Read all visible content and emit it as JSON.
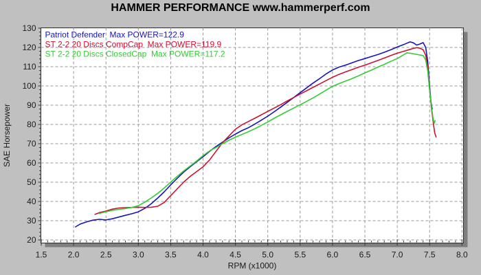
{
  "title": "HAMMER PERFORMANCE www.hammerperf.com",
  "colors": {
    "background": "#c0c0c0",
    "plot_background": "#ffffff",
    "plot_border": "#2a2a2a",
    "plot_shadow": "#7f7f7f",
    "grid": "#979797",
    "tick": "#333333",
    "title_text": "#000000",
    "axis_text": "#1a1a1a"
  },
  "chart_data": {
    "type": "line",
    "title": "HAMMER PERFORMANCE www.hammerperf.com",
    "xlabel": "RPM (x1000)",
    "ylabel": "SAE Horsepower",
    "xlim": [
      1.5,
      8.02
    ],
    "ylim": [
      18.4,
      130.4
    ],
    "grid": true,
    "legend_position": "top-left-inside",
    "x_ticks": [
      1.5,
      2.0,
      2.5,
      3.0,
      3.5,
      4.0,
      4.5,
      5.0,
      5.5,
      6.0,
      6.5,
      7.0,
      7.5,
      8.0
    ],
    "x_tick_labels": [
      "1.5",
      "2.0",
      "2.5",
      "3.0",
      "3.5",
      "4.0",
      "4.5",
      "5.0",
      "5.5",
      "6.0",
      "6.5",
      "7.0",
      "7.5",
      "8.0"
    ],
    "x_minor_step": 0.1,
    "y_ticks": [
      20,
      30,
      40,
      50,
      60,
      70,
      80,
      90,
      100,
      110,
      120,
      130
    ],
    "y_tick_labels": [
      "20",
      "30",
      "40",
      "50",
      "60",
      "70",
      "80",
      "90",
      "100",
      "110",
      "120",
      "130"
    ],
    "y_minor_step": 2,
    "series": [
      {
        "name": "Patriot Defender",
        "label": "Patriot Defender  Max POWER=122.9",
        "max_power": 122.9,
        "color": "#1414bb",
        "points": [
          [
            2.03,
            26.8
          ],
          [
            2.1,
            28.2
          ],
          [
            2.2,
            29.4
          ],
          [
            2.3,
            30.3
          ],
          [
            2.4,
            30.7
          ],
          [
            2.5,
            30.4
          ],
          [
            2.6,
            31.0
          ],
          [
            2.7,
            31.9
          ],
          [
            2.8,
            32.8
          ],
          [
            2.9,
            33.6
          ],
          [
            3.0,
            34.6
          ],
          [
            3.1,
            36.4
          ],
          [
            3.2,
            38.8
          ],
          [
            3.3,
            41.8
          ],
          [
            3.4,
            45.0
          ],
          [
            3.5,
            48.6
          ],
          [
            3.6,
            52.0
          ],
          [
            3.7,
            55.2
          ],
          [
            3.8,
            58.0
          ],
          [
            3.9,
            60.6
          ],
          [
            4.0,
            63.2
          ],
          [
            4.1,
            66.0
          ],
          [
            4.2,
            68.5
          ],
          [
            4.3,
            70.8
          ],
          [
            4.4,
            73.0
          ],
          [
            4.5,
            75.0
          ],
          [
            4.6,
            76.8
          ],
          [
            4.7,
            78.3
          ],
          [
            4.8,
            80.2
          ],
          [
            4.9,
            82.2
          ],
          [
            5.0,
            84.3
          ],
          [
            5.1,
            86.6
          ],
          [
            5.2,
            89.0
          ],
          [
            5.3,
            91.5
          ],
          [
            5.4,
            94.0
          ],
          [
            5.5,
            96.5
          ],
          [
            5.6,
            99.0
          ],
          [
            5.7,
            101.5
          ],
          [
            5.8,
            103.8
          ],
          [
            5.9,
            106.2
          ],
          [
            6.0,
            108.3
          ],
          [
            6.1,
            109.8
          ],
          [
            6.2,
            110.8
          ],
          [
            6.3,
            112.0
          ],
          [
            6.4,
            113.2
          ],
          [
            6.5,
            114.2
          ],
          [
            6.6,
            115.3
          ],
          [
            6.7,
            116.3
          ],
          [
            6.8,
            117.5
          ],
          [
            6.9,
            118.8
          ],
          [
            7.0,
            120.2
          ],
          [
            7.1,
            121.5
          ],
          [
            7.15,
            122.2
          ],
          [
            7.2,
            122.9
          ],
          [
            7.25,
            122.4
          ],
          [
            7.3,
            121.2
          ],
          [
            7.35,
            121.8
          ],
          [
            7.4,
            122.5
          ],
          [
            7.44,
            120.0
          ],
          [
            7.47,
            113.0
          ],
          [
            7.5,
            100.0
          ],
          [
            7.52,
            92.0
          ],
          [
            7.54,
            88.0
          ]
        ]
      },
      {
        "name": "ST 2-2 20 Discs CompCap",
        "label": "ST 2-2 20 Discs CompCap  Max POWER=119.9",
        "max_power": 119.9,
        "color": "#cc1133",
        "points": [
          [
            2.33,
            33.3
          ],
          [
            2.4,
            34.2
          ],
          [
            2.5,
            35.0
          ],
          [
            2.6,
            36.0
          ],
          [
            2.7,
            36.6
          ],
          [
            2.8,
            36.8
          ],
          [
            2.9,
            36.9
          ],
          [
            3.0,
            37.0
          ],
          [
            3.1,
            36.9
          ],
          [
            3.2,
            37.0
          ],
          [
            3.3,
            37.5
          ],
          [
            3.4,
            39.5
          ],
          [
            3.5,
            43.0
          ],
          [
            3.6,
            46.5
          ],
          [
            3.7,
            50.0
          ],
          [
            3.8,
            53.0
          ],
          [
            3.9,
            55.5
          ],
          [
            4.0,
            58.0
          ],
          [
            4.1,
            61.5
          ],
          [
            4.2,
            66.0
          ],
          [
            4.3,
            70.5
          ],
          [
            4.4,
            74.0
          ],
          [
            4.5,
            77.5
          ],
          [
            4.6,
            79.8
          ],
          [
            4.7,
            81.5
          ],
          [
            4.8,
            83.2
          ],
          [
            4.9,
            85.0
          ],
          [
            5.0,
            86.8
          ],
          [
            5.1,
            88.5
          ],
          [
            5.2,
            90.3
          ],
          [
            5.3,
            92.2
          ],
          [
            5.4,
            94.0
          ],
          [
            5.5,
            95.8
          ],
          [
            5.6,
            97.5
          ],
          [
            5.7,
            99.3
          ],
          [
            5.8,
            101.0
          ],
          [
            5.9,
            102.8
          ],
          [
            6.0,
            104.5
          ],
          [
            6.1,
            106.0
          ],
          [
            6.2,
            107.3
          ],
          [
            6.3,
            108.5
          ],
          [
            6.4,
            109.7
          ],
          [
            6.5,
            110.8
          ],
          [
            6.6,
            112.0
          ],
          [
            6.7,
            113.2
          ],
          [
            6.8,
            114.5
          ],
          [
            6.9,
            115.8
          ],
          [
            7.0,
            117.0
          ],
          [
            7.1,
            118.0
          ],
          [
            7.2,
            119.0
          ],
          [
            7.25,
            119.5
          ],
          [
            7.3,
            119.9
          ],
          [
            7.35,
            119.6
          ],
          [
            7.4,
            118.8
          ],
          [
            7.44,
            116.0
          ],
          [
            7.47,
            110.0
          ],
          [
            7.5,
            98.0
          ],
          [
            7.53,
            88.0
          ],
          [
            7.56,
            80.0
          ],
          [
            7.58,
            75.5
          ],
          [
            7.6,
            73.5
          ]
        ]
      },
      {
        "name": "ST 2-2 20 Discs ClosedCap",
        "label": "ST 2-2 20 Discs ClosedCap  Max POWER=117.2",
        "max_power": 117.2,
        "color": "#33cc33",
        "points": [
          [
            2.4,
            33.8
          ],
          [
            2.5,
            34.6
          ],
          [
            2.6,
            35.4
          ],
          [
            2.7,
            35.9
          ],
          [
            2.8,
            36.3
          ],
          [
            2.9,
            36.9
          ],
          [
            3.0,
            37.8
          ],
          [
            3.1,
            39.6
          ],
          [
            3.2,
            41.8
          ],
          [
            3.3,
            44.2
          ],
          [
            3.4,
            47.0
          ],
          [
            3.5,
            50.0
          ],
          [
            3.6,
            53.0
          ],
          [
            3.7,
            55.8
          ],
          [
            3.8,
            58.4
          ],
          [
            3.9,
            61.0
          ],
          [
            4.0,
            63.8
          ],
          [
            4.1,
            66.2
          ],
          [
            4.2,
            68.0
          ],
          [
            4.3,
            70.0
          ],
          [
            4.4,
            71.8
          ],
          [
            4.5,
            73.4
          ],
          [
            4.6,
            74.8
          ],
          [
            4.7,
            76.2
          ],
          [
            4.8,
            77.8
          ],
          [
            4.9,
            79.5
          ],
          [
            5.0,
            81.3
          ],
          [
            5.1,
            83.2
          ],
          [
            5.2,
            85.0
          ],
          [
            5.3,
            86.8
          ],
          [
            5.4,
            88.5
          ],
          [
            5.5,
            90.2
          ],
          [
            5.6,
            92.0
          ],
          [
            5.7,
            93.8
          ],
          [
            5.8,
            95.8
          ],
          [
            5.9,
            97.8
          ],
          [
            6.0,
            99.8
          ],
          [
            6.1,
            101.2
          ],
          [
            6.2,
            102.5
          ],
          [
            6.3,
            103.8
          ],
          [
            6.4,
            105.2
          ],
          [
            6.5,
            106.8
          ],
          [
            6.6,
            108.2
          ],
          [
            6.7,
            109.8
          ],
          [
            6.8,
            111.2
          ],
          [
            6.9,
            112.8
          ],
          [
            7.0,
            114.2
          ],
          [
            7.05,
            115.2
          ],
          [
            7.1,
            116.2
          ],
          [
            7.15,
            117.2
          ],
          [
            7.2,
            117.0
          ],
          [
            7.3,
            116.4
          ],
          [
            7.4,
            115.8
          ],
          [
            7.44,
            113.5
          ],
          [
            7.47,
            108.0
          ],
          [
            7.5,
            98.0
          ],
          [
            7.53,
            89.0
          ],
          [
            7.55,
            84.0
          ],
          [
            7.57,
            80.5
          ],
          [
            7.585,
            82.0
          ]
        ]
      }
    ]
  }
}
